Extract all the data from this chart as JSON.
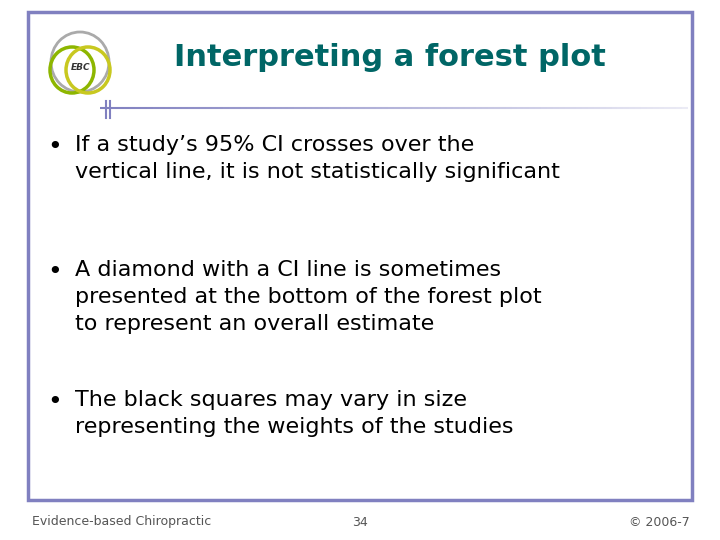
{
  "title": "Interpreting a forest plot",
  "title_color": "#006666",
  "title_fontsize": 22,
  "title_fontstyle": "bold",
  "bullet_points": [
    "If a study’s 95% CI crosses over the\nvertical line, it is not statistically significant",
    "A diamond with a CI line is sometimes\npresented at the bottom of the forest plot\nto represent an overall estimate",
    "The black squares may vary in size\nrepresenting the weights of the studies"
  ],
  "bullet_fontsize": 16,
  "bullet_color": "#000000",
  "border_color": "#8080C0",
  "background_color": "#ffffff",
  "footer_left": "Evidence-based Chiropractic",
  "footer_center": "34",
  "footer_right": "© 2006-7",
  "footer_fontsize": 9,
  "footer_color": "#555555",
  "header_line_color": "#8080C0",
  "logo_gray_color": "#aaaaaa",
  "logo_green_color": "#8DB600",
  "logo_yellow_color": "#c8c820",
  "logo_purple_color": "#8080C0",
  "logo_text": "EBC"
}
